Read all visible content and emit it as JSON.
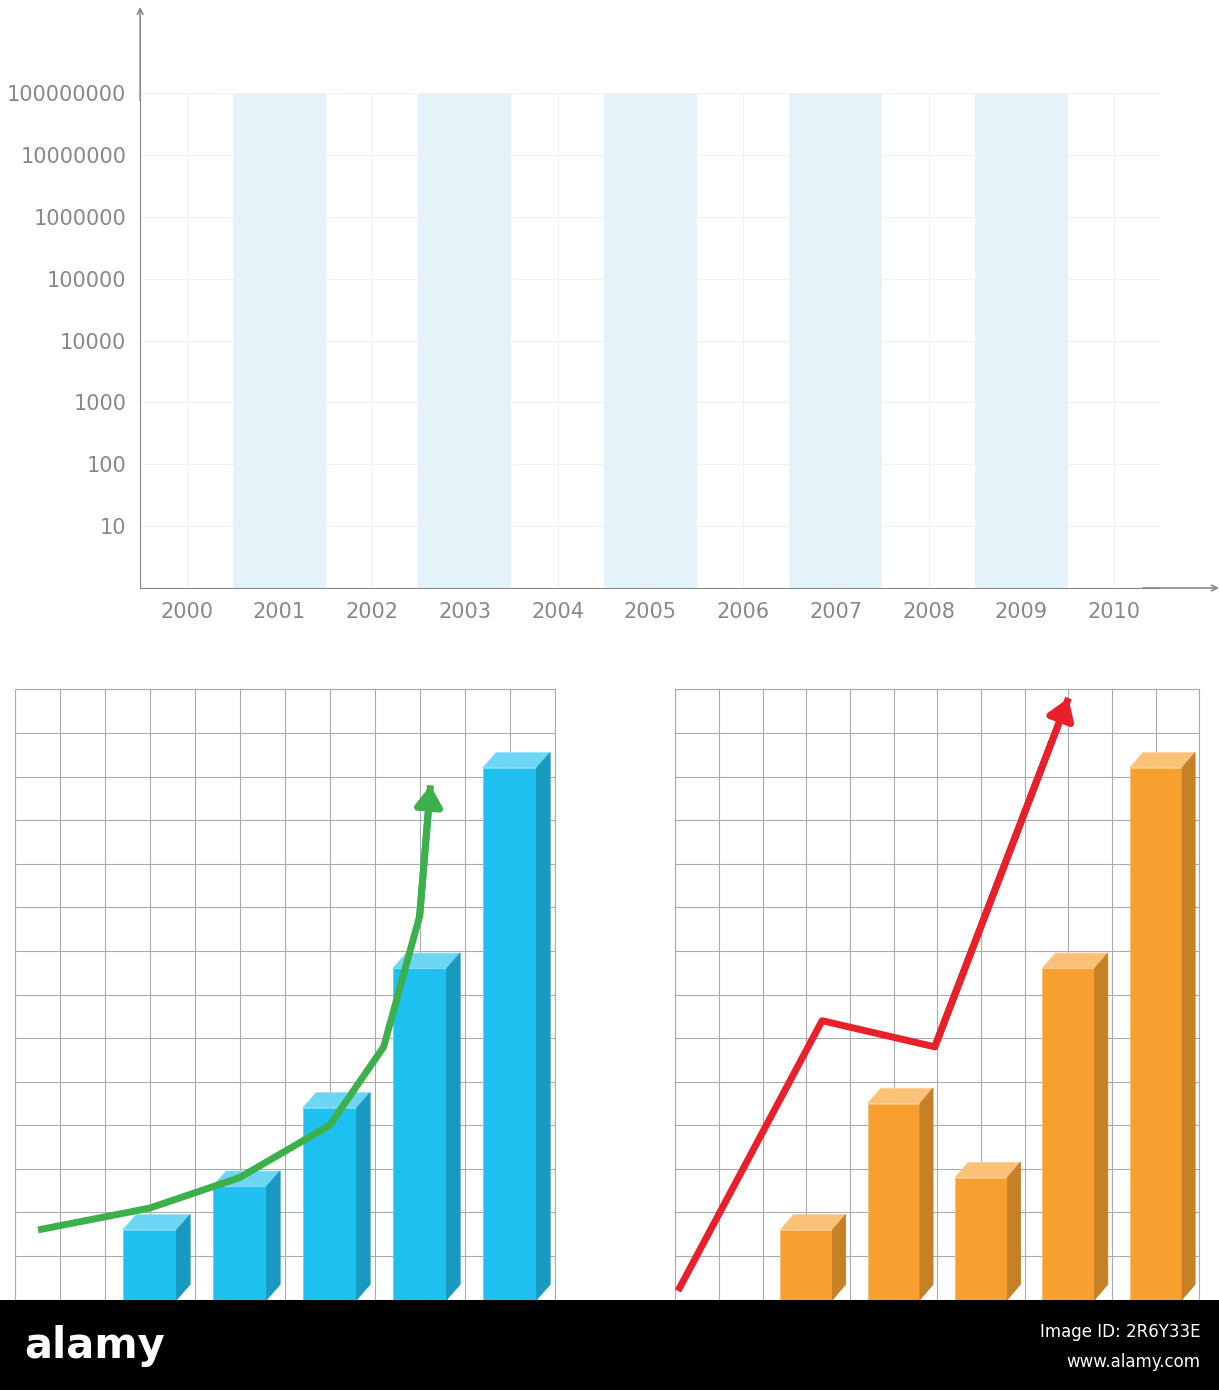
{
  "chart_data": [
    {
      "type": "bar",
      "categories": [
        "2000",
        "2001",
        "2002",
        "2003",
        "2004",
        "2005",
        "2006",
        "2007",
        "2008",
        "2009",
        "2010"
      ],
      "values": [
        null,
        null,
        null,
        null,
        null,
        null,
        null,
        null,
        null,
        null,
        null
      ],
      "log": "y",
      "ylim": [
        1,
        100000000
      ],
      "yticks": [
        10,
        100,
        1000,
        10000,
        100000,
        1000000,
        10000000,
        100000000
      ],
      "grid": true
    },
    {
      "type": "bar",
      "tick_labels": false,
      "grid": true,
      "xlim": [
        -1.5,
        4.5
      ],
      "xticks": [
        -1.5,
        -1.0,
        -0.5,
        0.0,
        0.5,
        1.0,
        1.5,
        2.0,
        2.5,
        3.0,
        3.5,
        4.0,
        4.5
      ],
      "ylim": [
        0,
        14
      ],
      "yticks": [
        0,
        1,
        2,
        3,
        4,
        5,
        6,
        7,
        8,
        9,
        10,
        11,
        12,
        13,
        14
      ],
      "series": [
        {
          "type": "bar",
          "color": "#1ec0f0",
          "x": [
            0,
            1,
            2,
            3,
            4
          ],
          "values": [
            1.6,
            2.6,
            4.4,
            7.6,
            12.2
          ]
        },
        {
          "type": "line",
          "color": "#3cb04a",
          "x": [
            -1.24,
            0,
            1,
            2,
            2.6,
            3.0,
            3.12
          ],
          "values": [
            1.6,
            2.1,
            2.8,
            4.0,
            5.8,
            8.8,
            11.8
          ]
        }
      ]
    },
    {
      "type": "bar",
      "tick_labels": false,
      "grid": true,
      "xlim": [
        -1.5,
        4.5
      ],
      "xticks": [
        -1.5,
        -1.0,
        -0.5,
        0.0,
        0.5,
        1.0,
        1.5,
        2.0,
        2.5,
        3.0,
        3.5,
        4.0,
        4.5
      ],
      "ylim": [
        0,
        14
      ],
      "yticks": [
        0,
        1,
        2,
        3,
        4,
        5,
        6,
        7,
        8,
        9,
        10,
        11,
        12,
        13,
        14
      ],
      "series": [
        {
          "type": "bar",
          "color": "#f7a030",
          "x": [
            0,
            1,
            2,
            3,
            4
          ],
          "values": [
            1.6,
            4.5,
            2.8,
            7.6,
            12.2
          ]
        },
        {
          "type": "line",
          "color": "#e8202a",
          "x": [
            -1.47,
            0.18,
            1.47,
            3.0
          ],
          "values": [
            0.2,
            6.4,
            5.8,
            13.8
          ]
        }
      ]
    }
  ],
  "footer": {
    "brand": "alamy",
    "image_id": "Image ID: 2R6Y33E",
    "url": "www.alamy.com"
  }
}
